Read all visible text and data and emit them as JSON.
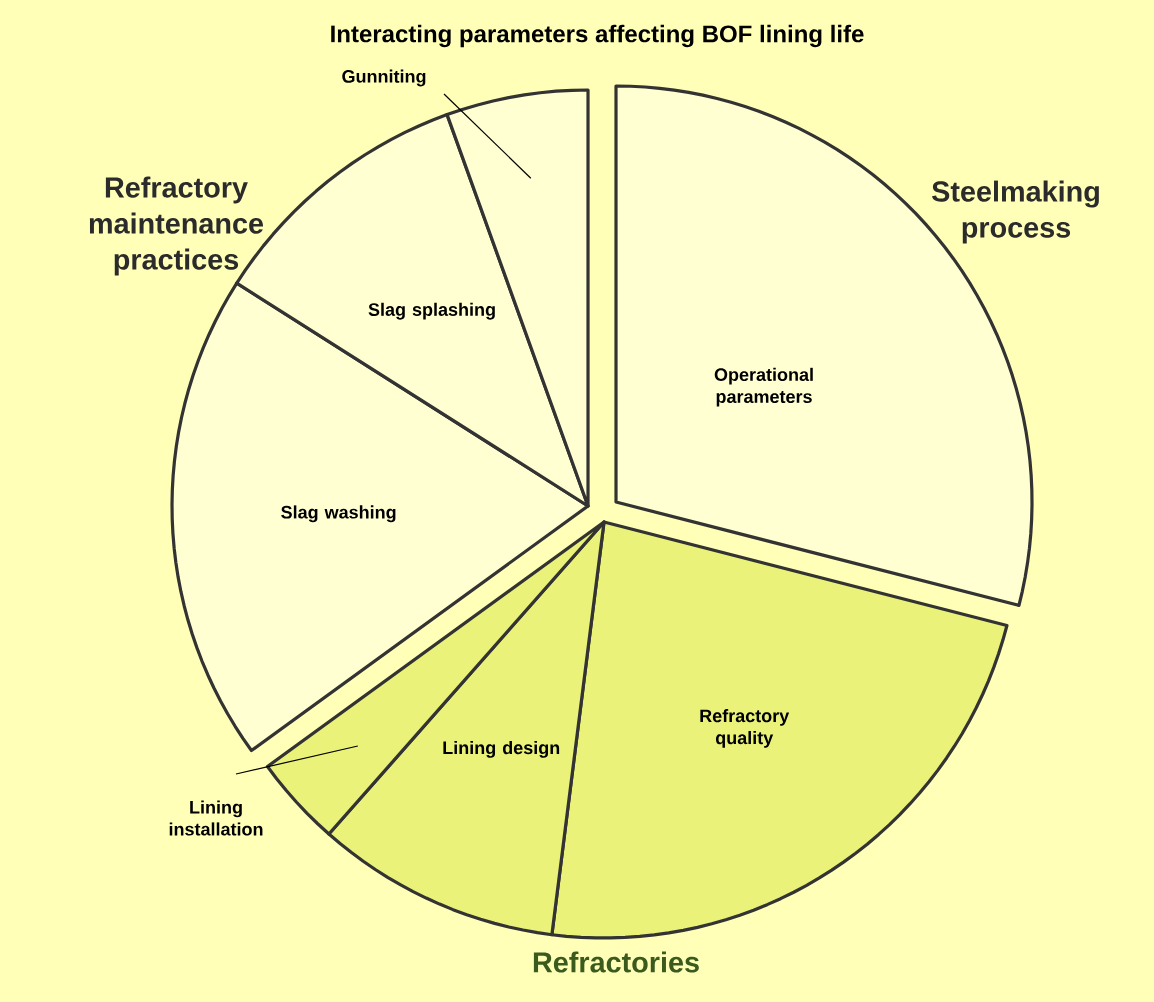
{
  "chart_data": {
    "type": "pie",
    "title": "Interacting parameters affecting BOF lining life",
    "categories": [
      "Operational parameters",
      "Refractory quality",
      "Lining design",
      "Lining installation",
      "Slag washing",
      "Slag splashing",
      "Gunniting"
    ],
    "values": [
      29,
      23,
      9.5,
      3.5,
      19,
      10.5,
      5.5
    ],
    "colors": [
      "#ffffd2",
      "#eaf27a",
      "#eaf27a",
      "#eaf27a",
      "#ffffd2",
      "#ffffd2",
      "#ffffd2"
    ],
    "annotations": [
      "Steelmaking process",
      "Refractory maintenance practices",
      "Refractories"
    ]
  }
}
